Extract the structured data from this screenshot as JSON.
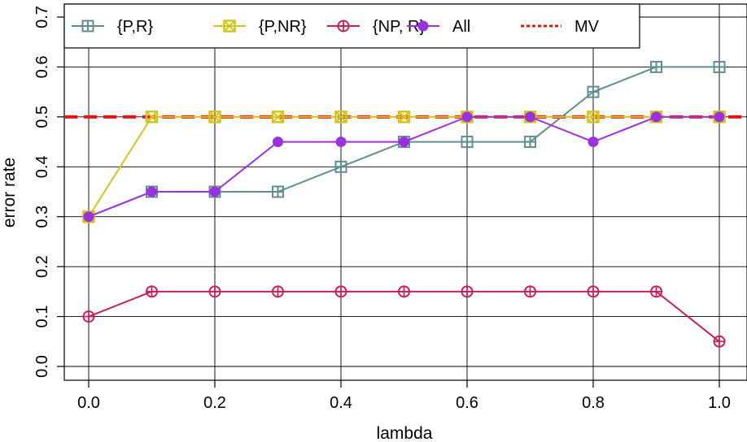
{
  "chart_data": {
    "type": "line",
    "title": "",
    "xlabel": "lambda",
    "ylabel": "error rate",
    "xlim": [
      0.0,
      1.0
    ],
    "ylim": [
      0.0,
      0.7
    ],
    "grid": true,
    "legend_position": "top",
    "x": [
      0.0,
      0.1,
      0.2,
      0.3,
      0.4,
      0.5,
      0.6,
      0.7,
      0.8,
      0.9,
      1.0
    ],
    "xticks": [
      "0.0",
      "0.2",
      "0.4",
      "0.6",
      "0.8",
      "1.0"
    ],
    "yticks": [
      "0.0",
      "0.1",
      "0.2",
      "0.3",
      "0.4",
      "0.5",
      "0.6",
      "0.7"
    ],
    "series": [
      {
        "name": "{P,R}",
        "color": "#5f8f8f",
        "marker": "square-plus",
        "values": [
          0.3,
          0.35,
          0.35,
          0.35,
          0.4,
          0.45,
          0.45,
          0.45,
          0.55,
          0.6,
          0.6
        ]
      },
      {
        "name": "{P,NR}",
        "color": "#d4c41c",
        "marker": "square-x",
        "values": [
          0.3,
          0.5,
          0.5,
          0.5,
          0.5,
          0.5,
          0.5,
          0.5,
          0.5,
          0.5,
          0.5
        ]
      },
      {
        "name": "{NP, R}",
        "color": "#c8205a",
        "marker": "circle-plus",
        "values": [
          0.1,
          0.15,
          0.15,
          0.15,
          0.15,
          0.15,
          0.15,
          0.15,
          0.15,
          0.15,
          0.05
        ]
      },
      {
        "name": "All",
        "color": "#9b30e0",
        "marker": "filled-circle",
        "values": [
          0.3,
          0.35,
          0.35,
          0.45,
          0.45,
          0.45,
          0.5,
          0.5,
          0.45,
          0.5,
          0.5
        ]
      }
    ],
    "reference_line": {
      "name": "MV",
      "value": 0.5,
      "color": "#ee1111",
      "style": "dashed"
    }
  }
}
